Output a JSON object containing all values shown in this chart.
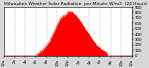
{
  "title": "Milwaukee Weather Solar Radiation  per Minute W/m2  (24 Hours)",
  "title_fontsize": 3.2,
  "bg_color": "#d8d8d8",
  "plot_bg_color": "#ffffff",
  "fill_color": "#ff0000",
  "xlim": [
    0,
    1440
  ],
  "ylim": [
    0,
    900
  ],
  "ytick_positions": [
    0,
    100,
    200,
    300,
    400,
    500,
    600,
    700,
    800,
    900
  ],
  "ytick_labels": [
    "0",
    "100",
    "200",
    "300",
    "400",
    "500",
    "600",
    "700",
    "800",
    "900"
  ],
  "xtick_positions": [
    0,
    120,
    240,
    360,
    480,
    600,
    720,
    840,
    960,
    1080,
    1200,
    1320,
    1440
  ],
  "xtick_labels": [
    "12a",
    "2a",
    "4a",
    "6a",
    "8a",
    "10a",
    "12p",
    "2p",
    "4p",
    "6p",
    "8p",
    "10p",
    "12a"
  ],
  "grid_color": "#999999",
  "tick_fontsize": 2.8,
  "peak_minute": 720,
  "peak_value": 830,
  "sunrise": 370,
  "sunset": 1160
}
